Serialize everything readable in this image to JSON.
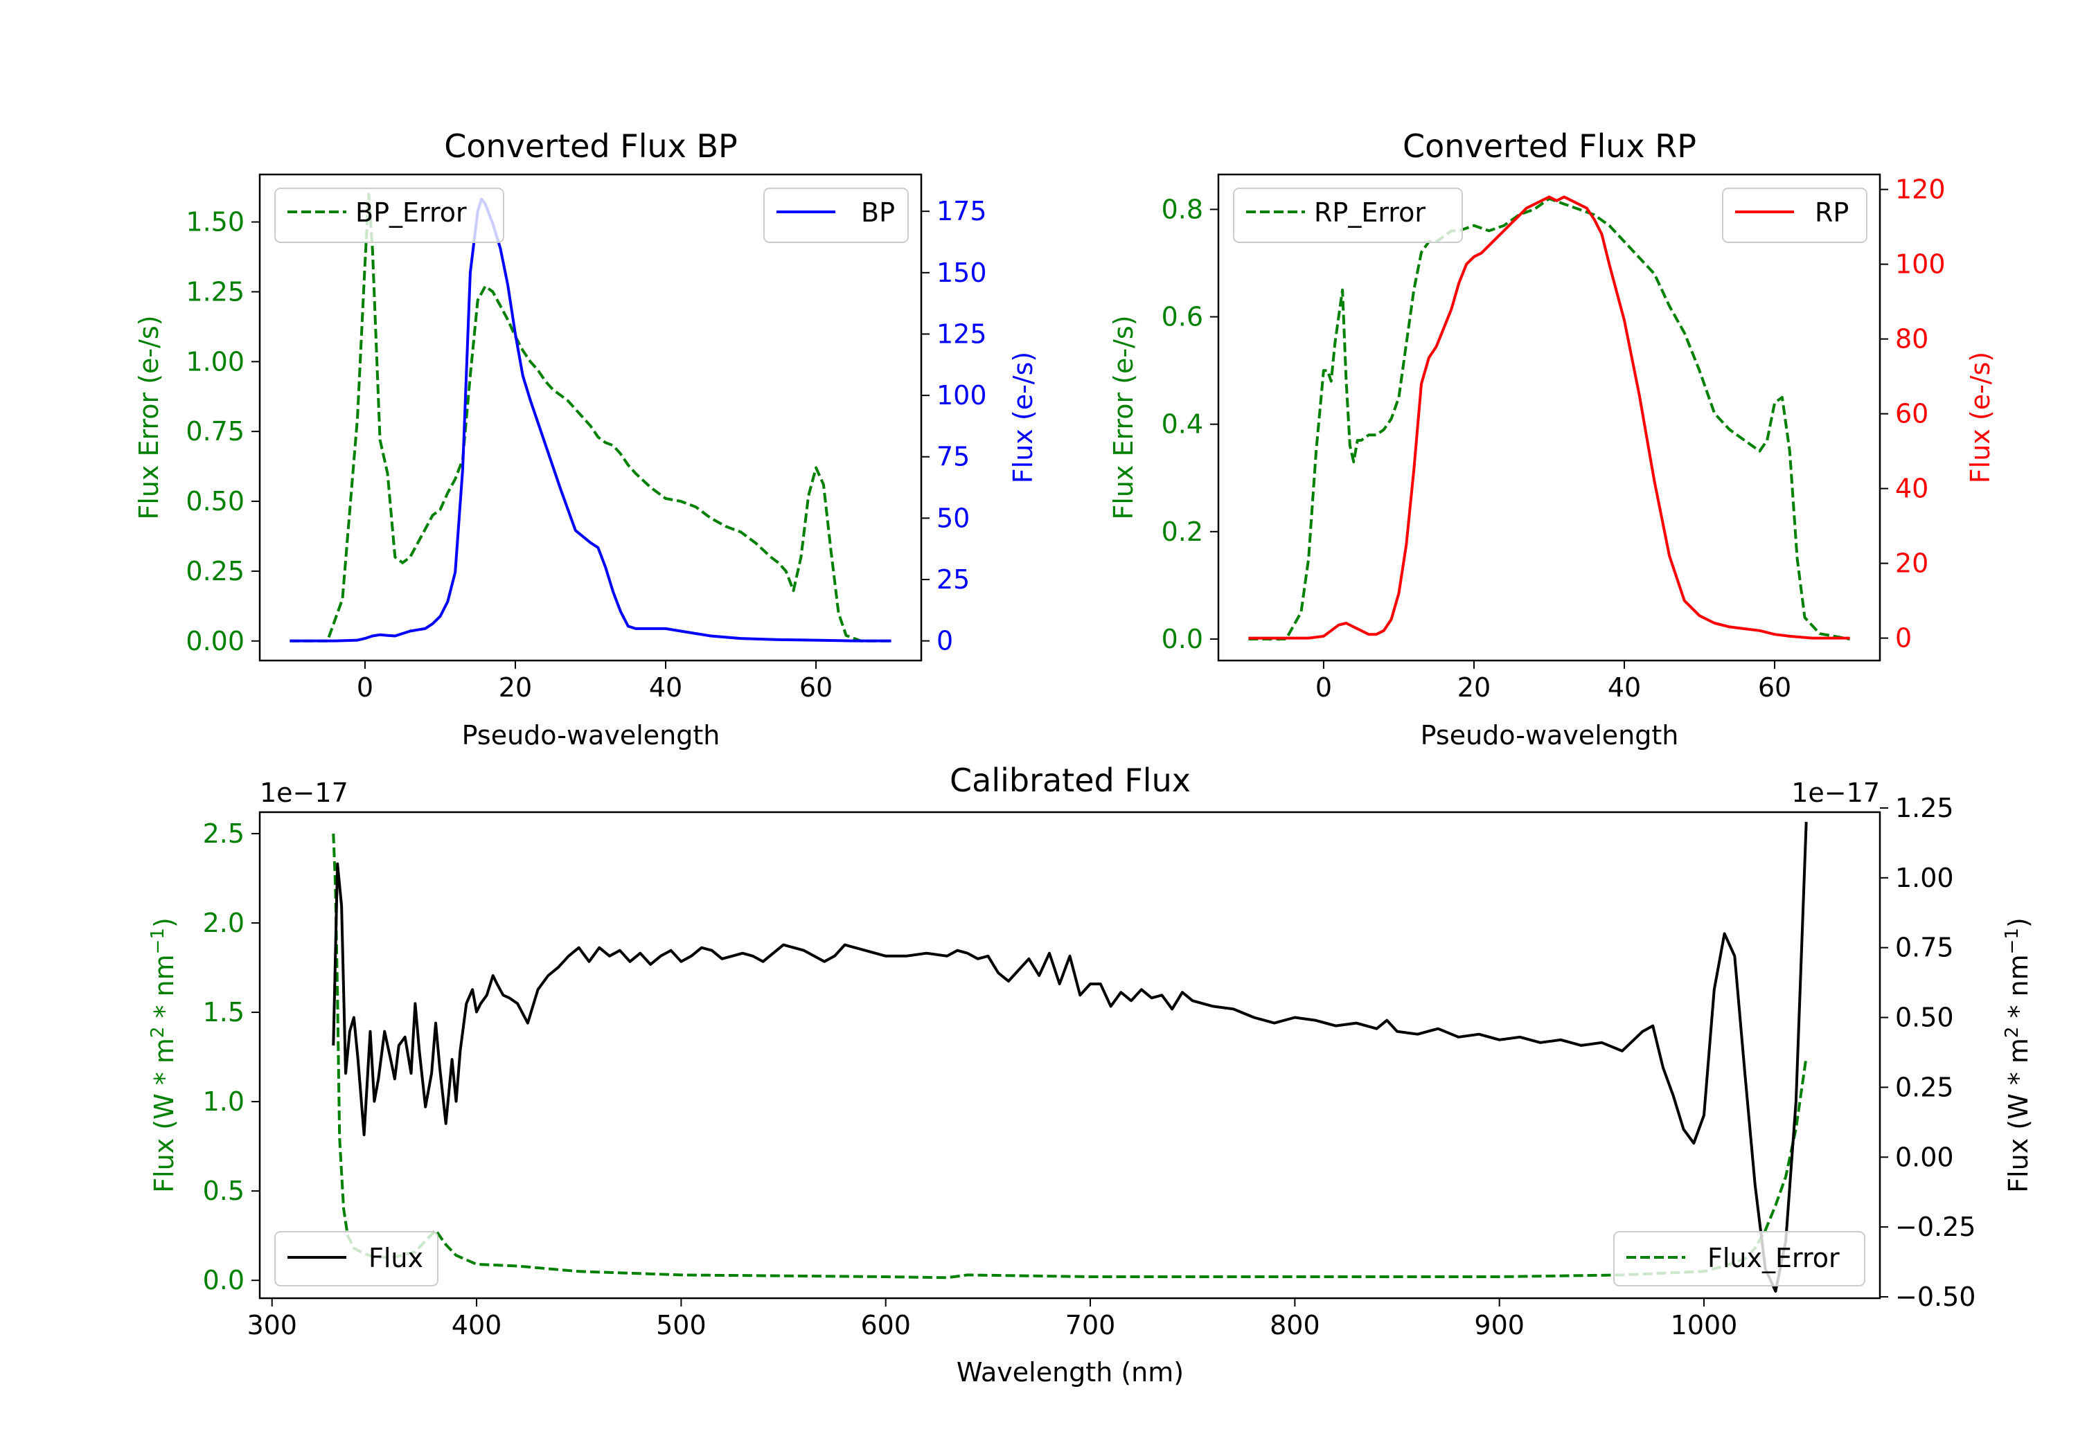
{
  "chart_data": [
    {
      "type": "line",
      "id": "bp",
      "title": "Converted Flux BP",
      "xlabel": "Pseudo-wavelength",
      "ylabel_left": "Flux Error (e-/s)",
      "ylabel_right": "Flux (e-/s)",
      "xlim": [
        -14,
        74
      ],
      "ylim_left": [
        -0.07,
        1.67
      ],
      "ylim_right": [
        -8,
        190
      ],
      "xticks": [
        "0",
        "20",
        "40",
        "60"
      ],
      "yticks_left": [
        "0.00",
        "0.25",
        "0.50",
        "0.75",
        "1.00",
        "1.25",
        "1.50"
      ],
      "yticks_right": [
        "0",
        "25",
        "50",
        "75",
        "100",
        "125",
        "150",
        "175"
      ],
      "left_color": "#008000",
      "right_color": "#0000ff",
      "legend_left": "BP_Error",
      "legend_right": "BP",
      "series": [
        {
          "name": "BP_Error",
          "axis": "left",
          "style": "dashed",
          "color": "#008000",
          "x": [
            -10,
            -5,
            -3,
            -1,
            0,
            0.5,
            1,
            2,
            3,
            3.5,
            4,
            5,
            6,
            7,
            8,
            9,
            10,
            11,
            12,
            13,
            14,
            15,
            16,
            17,
            18,
            19,
            20,
            21,
            22,
            23,
            24,
            25,
            26,
            27,
            28,
            29,
            30,
            31,
            32,
            33,
            34,
            35,
            36,
            38,
            40,
            42,
            44,
            46,
            48,
            50,
            52,
            54,
            55,
            56,
            57,
            58,
            59,
            60,
            61,
            62,
            63,
            64,
            66,
            70
          ],
          "y": [
            0,
            0,
            0.15,
            0.8,
            1.35,
            1.6,
            1.4,
            0.72,
            0.6,
            0.45,
            0.3,
            0.28,
            0.3,
            0.35,
            0.4,
            0.45,
            0.47,
            0.53,
            0.58,
            0.65,
            0.95,
            1.22,
            1.27,
            1.25,
            1.2,
            1.15,
            1.09,
            1.04,
            1.0,
            0.97,
            0.93,
            0.9,
            0.88,
            0.86,
            0.83,
            0.8,
            0.77,
            0.73,
            0.71,
            0.7,
            0.67,
            0.63,
            0.6,
            0.55,
            0.51,
            0.5,
            0.48,
            0.44,
            0.41,
            0.39,
            0.35,
            0.3,
            0.28,
            0.25,
            0.18,
            0.3,
            0.52,
            0.62,
            0.56,
            0.32,
            0.1,
            0.02,
            0,
            0
          ]
        },
        {
          "name": "BP",
          "axis": "right",
          "style": "solid",
          "color": "#0000ff",
          "x": [
            -10,
            -4,
            -1,
            0,
            1,
            2,
            3,
            4,
            5,
            6,
            7,
            8,
            9,
            10,
            11,
            12,
            13,
            14,
            15,
            15.5,
            16,
            17,
            18,
            19,
            20,
            21,
            22,
            24,
            26,
            28,
            30,
            31,
            32,
            33,
            34,
            35,
            36,
            37,
            38,
            40,
            42,
            44,
            46,
            50,
            55,
            60,
            65,
            70
          ],
          "y": [
            0,
            0,
            0.3,
            1,
            2,
            2.5,
            2.2,
            2,
            3,
            4,
            4.5,
            5,
            7,
            10,
            16,
            28,
            70,
            150,
            175,
            180,
            178,
            170,
            160,
            145,
            125,
            108,
            98,
            80,
            62,
            45,
            40,
            38,
            30,
            20,
            12,
            6,
            5,
            5,
            5,
            5,
            4,
            3,
            2,
            1,
            0.5,
            0.3,
            0,
            0
          ]
        }
      ]
    },
    {
      "type": "line",
      "id": "rp",
      "title": "Converted Flux RP",
      "xlabel": "Pseudo-wavelength",
      "ylabel_left": "Flux Error (e-/s)",
      "ylabel_right": "Flux (e-/s)",
      "xlim": [
        -14,
        74
      ],
      "ylim_left": [
        -0.04,
        0.865
      ],
      "ylim_right": [
        -6,
        124
      ],
      "xticks": [
        "0",
        "20",
        "40",
        "60"
      ],
      "yticks_left": [
        "0.0",
        "0.2",
        "0.4",
        "0.6",
        "0.8"
      ],
      "yticks_right": [
        "0",
        "20",
        "40",
        "60",
        "80",
        "100",
        "120"
      ],
      "left_color": "#008000",
      "right_color": "#ff0000",
      "legend_left": "RP_Error",
      "legend_right": "RP",
      "series": [
        {
          "name": "RP_Error",
          "axis": "left",
          "style": "dashed",
          "color": "#008000",
          "x": [
            -10,
            -5,
            -3,
            -2,
            -1,
            0,
            0.5,
            1,
            1.5,
            2,
            2.5,
            3,
            3.5,
            4,
            4.5,
            5,
            6,
            7,
            8,
            9,
            10,
            11,
            12,
            13,
            14,
            15,
            16,
            17,
            18,
            20,
            22,
            24,
            26,
            28,
            30,
            32,
            34,
            36,
            38,
            40,
            42,
            44,
            46,
            48,
            50,
            52,
            54,
            55,
            56,
            57,
            58,
            59,
            60,
            61,
            62,
            63,
            64,
            66,
            70
          ],
          "y": [
            0,
            0,
            0.05,
            0.15,
            0.35,
            0.5,
            0.5,
            0.48,
            0.55,
            0.6,
            0.65,
            0.48,
            0.36,
            0.33,
            0.37,
            0.37,
            0.38,
            0.38,
            0.39,
            0.41,
            0.45,
            0.55,
            0.65,
            0.72,
            0.74,
            0.74,
            0.75,
            0.76,
            0.76,
            0.77,
            0.76,
            0.77,
            0.79,
            0.8,
            0.82,
            0.81,
            0.8,
            0.79,
            0.77,
            0.74,
            0.71,
            0.68,
            0.62,
            0.57,
            0.5,
            0.42,
            0.39,
            0.38,
            0.37,
            0.36,
            0.35,
            0.37,
            0.44,
            0.45,
            0.35,
            0.15,
            0.04,
            0.01,
            0
          ]
        },
        {
          "name": "RP",
          "axis": "right",
          "style": "solid",
          "color": "#ff0000",
          "x": [
            -10,
            -2,
            0,
            1,
            2,
            3,
            4,
            5,
            6,
            7,
            8,
            9,
            10,
            11,
            12,
            13,
            14,
            15,
            16,
            17,
            18,
            19,
            20,
            21,
            22,
            23,
            24,
            25,
            26,
            27,
            28,
            29,
            30,
            31,
            32,
            33,
            34,
            35,
            36,
            37,
            38,
            40,
            42,
            44,
            46,
            48,
            50,
            52,
            54,
            56,
            58,
            60,
            62,
            65,
            70
          ],
          "y": [
            0,
            0,
            0.5,
            2,
            3.5,
            4,
            3,
            2,
            1,
            1,
            2,
            5,
            12,
            25,
            45,
            68,
            75,
            78,
            83,
            88,
            95,
            100,
            102,
            103,
            105,
            107,
            109,
            111,
            113,
            115,
            116,
            117,
            118,
            117,
            118,
            117,
            116,
            115,
            112,
            108,
            100,
            85,
            65,
            42,
            22,
            10,
            6,
            4,
            3,
            2.5,
            2,
            1,
            0.5,
            0,
            0
          ]
        }
      ]
    },
    {
      "type": "line",
      "id": "cal",
      "title": "Calibrated Flux",
      "xlabel": "Wavelength (nm)",
      "ylabel_left": "Flux (W * m",
      "ylabel_right": "Flux (W * m",
      "ylabel_unit_mid": " * nm",
      "ylabel_sup_2": "2",
      "ylabel_sup_neg1": "−1",
      "ylabel_close": ")",
      "offset_left": "1e−17",
      "offset_right": "1e−17",
      "xlim": [
        294,
        1086
      ],
      "ylim_left": [
        -0.1,
        2.62
      ],
      "ylim_right": [
        -0.505,
        1.235
      ],
      "xticks": [
        "300",
        "400",
        "500",
        "600",
        "700",
        "800",
        "900",
        "1000"
      ],
      "yticks_left": [
        "0.0",
        "0.5",
        "1.0",
        "1.5",
        "2.0",
        "2.5"
      ],
      "yticks_right": [
        "−0.50",
        "−0.25",
        "0.00",
        "0.25",
        "0.50",
        "0.75",
        "1.00",
        "1.25"
      ],
      "left_color": "#008000",
      "right_color": "#000000",
      "legend_left": "Flux",
      "legend_right": "Flux_Error",
      "series": [
        {
          "name": "Flux_Error",
          "axis": "left",
          "style": "dashed",
          "color": "#008000",
          "x": [
            330,
            331,
            332,
            333,
            335,
            337,
            340,
            345,
            350,
            360,
            370,
            380,
            385,
            390,
            400,
            420,
            450,
            500,
            550,
            600,
            630,
            640,
            700,
            800,
            900,
            960,
            1000,
            1010,
            1020,
            1025,
            1030,
            1035,
            1040,
            1045,
            1050
          ],
          "y": [
            2.5,
            2.2,
            1.6,
            0.8,
            0.4,
            0.25,
            0.18,
            0.15,
            0.13,
            0.13,
            0.16,
            0.28,
            0.2,
            0.14,
            0.09,
            0.08,
            0.05,
            0.03,
            0.025,
            0.02,
            0.015,
            0.03,
            0.02,
            0.02,
            0.02,
            0.03,
            0.05,
            0.08,
            0.12,
            0.18,
            0.28,
            0.42,
            0.58,
            0.85,
            1.25
          ]
        },
        {
          "name": "Flux",
          "axis": "right",
          "style": "solid",
          "color": "#000000",
          "x": [
            330,
            332,
            334,
            336,
            338,
            340,
            342,
            345,
            348,
            350,
            352,
            355,
            358,
            360,
            362,
            365,
            368,
            370,
            372,
            375,
            378,
            380,
            382,
            385,
            388,
            390,
            392,
            395,
            398,
            400,
            402,
            405,
            408,
            410,
            413,
            416,
            420,
            425,
            430,
            435,
            440,
            445,
            450,
            455,
            460,
            465,
            470,
            475,
            480,
            485,
            490,
            495,
            500,
            505,
            510,
            515,
            520,
            525,
            530,
            535,
            540,
            550,
            560,
            570,
            575,
            580,
            585,
            590,
            600,
            610,
            620,
            630,
            635,
            640,
            645,
            650,
            655,
            660,
            665,
            670,
            675,
            680,
            685,
            690,
            695,
            700,
            705,
            710,
            715,
            720,
            725,
            730,
            735,
            740,
            745,
            750,
            755,
            760,
            770,
            780,
            790,
            800,
            810,
            820,
            830,
            840,
            845,
            850,
            860,
            870,
            880,
            890,
            900,
            910,
            920,
            930,
            940,
            950,
            960,
            970,
            975,
            980,
            985,
            990,
            995,
            1000,
            1005,
            1010,
            1015,
            1020,
            1025,
            1030,
            1035,
            1040,
            1045,
            1050
          ],
          "y": [
            0.4,
            1.05,
            0.9,
            0.3,
            0.45,
            0.5,
            0.35,
            0.08,
            0.45,
            0.2,
            0.28,
            0.45,
            0.35,
            0.28,
            0.4,
            0.43,
            0.3,
            0.55,
            0.38,
            0.18,
            0.3,
            0.48,
            0.32,
            0.12,
            0.35,
            0.2,
            0.38,
            0.55,
            0.6,
            0.52,
            0.55,
            0.58,
            0.65,
            0.62,
            0.58,
            0.57,
            0.55,
            0.48,
            0.6,
            0.65,
            0.68,
            0.72,
            0.75,
            0.7,
            0.75,
            0.72,
            0.74,
            0.7,
            0.73,
            0.69,
            0.72,
            0.74,
            0.7,
            0.72,
            0.75,
            0.74,
            0.71,
            0.72,
            0.73,
            0.72,
            0.7,
            0.76,
            0.74,
            0.7,
            0.72,
            0.76,
            0.75,
            0.74,
            0.72,
            0.72,
            0.73,
            0.72,
            0.74,
            0.73,
            0.71,
            0.72,
            0.66,
            0.63,
            0.67,
            0.71,
            0.65,
            0.73,
            0.62,
            0.72,
            0.58,
            0.62,
            0.62,
            0.54,
            0.59,
            0.56,
            0.6,
            0.57,
            0.58,
            0.53,
            0.59,
            0.56,
            0.55,
            0.54,
            0.53,
            0.5,
            0.48,
            0.5,
            0.49,
            0.47,
            0.48,
            0.46,
            0.49,
            0.45,
            0.44,
            0.46,
            0.43,
            0.44,
            0.42,
            0.43,
            0.41,
            0.42,
            0.4,
            0.41,
            0.38,
            0.45,
            0.47,
            0.32,
            0.22,
            0.1,
            0.05,
            0.15,
            0.6,
            0.8,
            0.72,
            0.3,
            -0.1,
            -0.4,
            -0.48,
            -0.3,
            0.2,
            1.2
          ]
        }
      ]
    }
  ]
}
